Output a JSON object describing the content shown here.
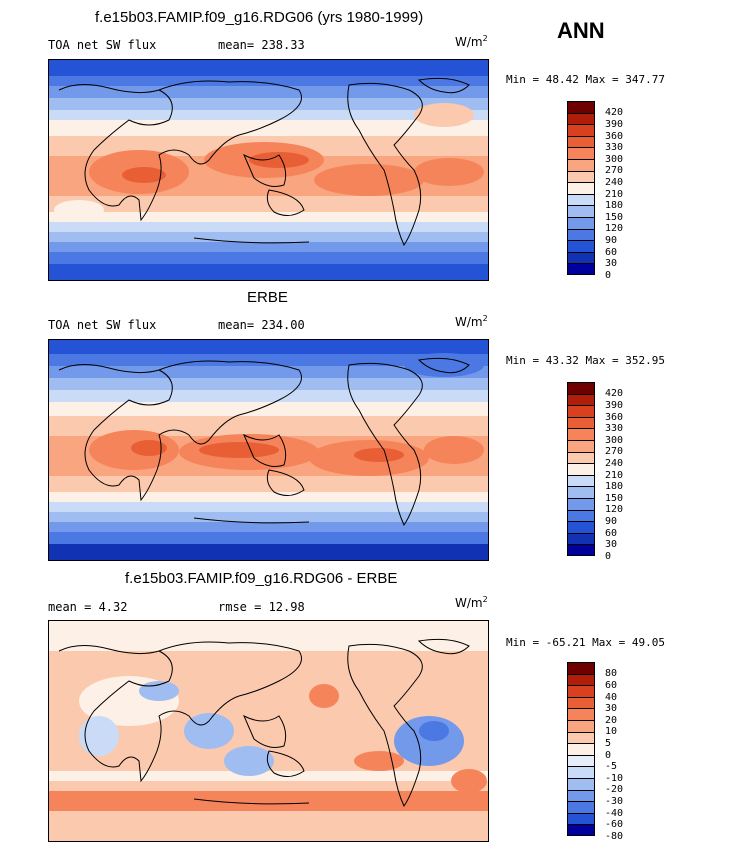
{
  "season_label": "ANN",
  "panels": [
    {
      "title": "f.e15b03.FAMIP.f09_g16.RDG06 (yrs 1980-1999)",
      "left_label": "TOA net SW flux",
      "mean_label": "mean= 238.33",
      "units": "W/m",
      "units_exp": "2",
      "minmax": "Min =  48.42 Max = 347.77",
      "colorbar_ticks": [
        "420",
        "390",
        "360",
        "330",
        "300",
        "270",
        "240",
        "210",
        "180",
        "150",
        "120",
        "90",
        "60",
        "30",
        "0"
      ]
    },
    {
      "title": "ERBE",
      "left_label": "TOA net SW flux",
      "mean_label": "mean= 234.00",
      "units": "W/m",
      "units_exp": "2",
      "minmax": "Min =  43.32 Max = 352.95",
      "colorbar_ticks": [
        "420",
        "390",
        "360",
        "330",
        "300",
        "270",
        "240",
        "210",
        "180",
        "150",
        "120",
        "90",
        "60",
        "30",
        "0"
      ]
    },
    {
      "title": "f.e15b03.FAMIP.f09_g16.RDG06 - ERBE",
      "left_label": "mean =   4.32",
      "mean_label": "rmse =  12.98",
      "units": "W/m",
      "units_exp": "2",
      "minmax": "Min = -65.21 Max =  49.05",
      "colorbar_ticks": [
        "80",
        "60",
        "40",
        "30",
        "20",
        "10",
        "5",
        "0",
        "-5",
        "-10",
        "-20",
        "-30",
        "-40",
        "-60",
        "-80"
      ]
    }
  ],
  "colors": {
    "abs_scale": [
      "#6e0000",
      "#b01e0a",
      "#d8401f",
      "#e95f35",
      "#f5845a",
      "#f9a57f",
      "#fbc9ad",
      "#fdf0e6",
      "#c9dbf7",
      "#9fbdf0",
      "#7299ea",
      "#4b78e3",
      "#2553d6",
      "#1032b3",
      "#00009e"
    ],
    "diff_scale": [
      "#6e0000",
      "#b01e0a",
      "#d8401f",
      "#e95f35",
      "#f5845a",
      "#f9a57f",
      "#fbc9ad",
      "#fdf0e6",
      "#e6eefc",
      "#c9dbf7",
      "#9fbdf0",
      "#7299ea",
      "#4b78e3",
      "#2553d6",
      "#00009e"
    ]
  },
  "chart_data": [
    {
      "type": "heatmap",
      "title": "f.e15b03.FAMIP.f09_g16.RDG06 (yrs 1980-1999)",
      "variable": "TOA net SW flux",
      "units": "W/m2",
      "season": "ANN",
      "mean": 238.33,
      "min": 48.42,
      "max": 347.77,
      "contour_levels": [
        0,
        30,
        60,
        90,
        120,
        150,
        180,
        210,
        240,
        270,
        300,
        330,
        360,
        390,
        420
      ]
    },
    {
      "type": "heatmap",
      "title": "ERBE",
      "variable": "TOA net SW flux",
      "units": "W/m2",
      "season": "ANN",
      "mean": 234.0,
      "min": 43.32,
      "max": 352.95,
      "contour_levels": [
        0,
        30,
        60,
        90,
        120,
        150,
        180,
        210,
        240,
        270,
        300,
        330,
        360,
        390,
        420
      ]
    },
    {
      "type": "heatmap",
      "title": "f.e15b03.FAMIP.f09_g16.RDG06 - ERBE",
      "units": "W/m2",
      "season": "ANN",
      "mean": 4.32,
      "rmse": 12.98,
      "min": -65.21,
      "max": 49.05,
      "contour_levels": [
        -80,
        -60,
        -40,
        -30,
        -20,
        -10,
        -5,
        0,
        5,
        10,
        20,
        30,
        40,
        60,
        80
      ]
    }
  ]
}
